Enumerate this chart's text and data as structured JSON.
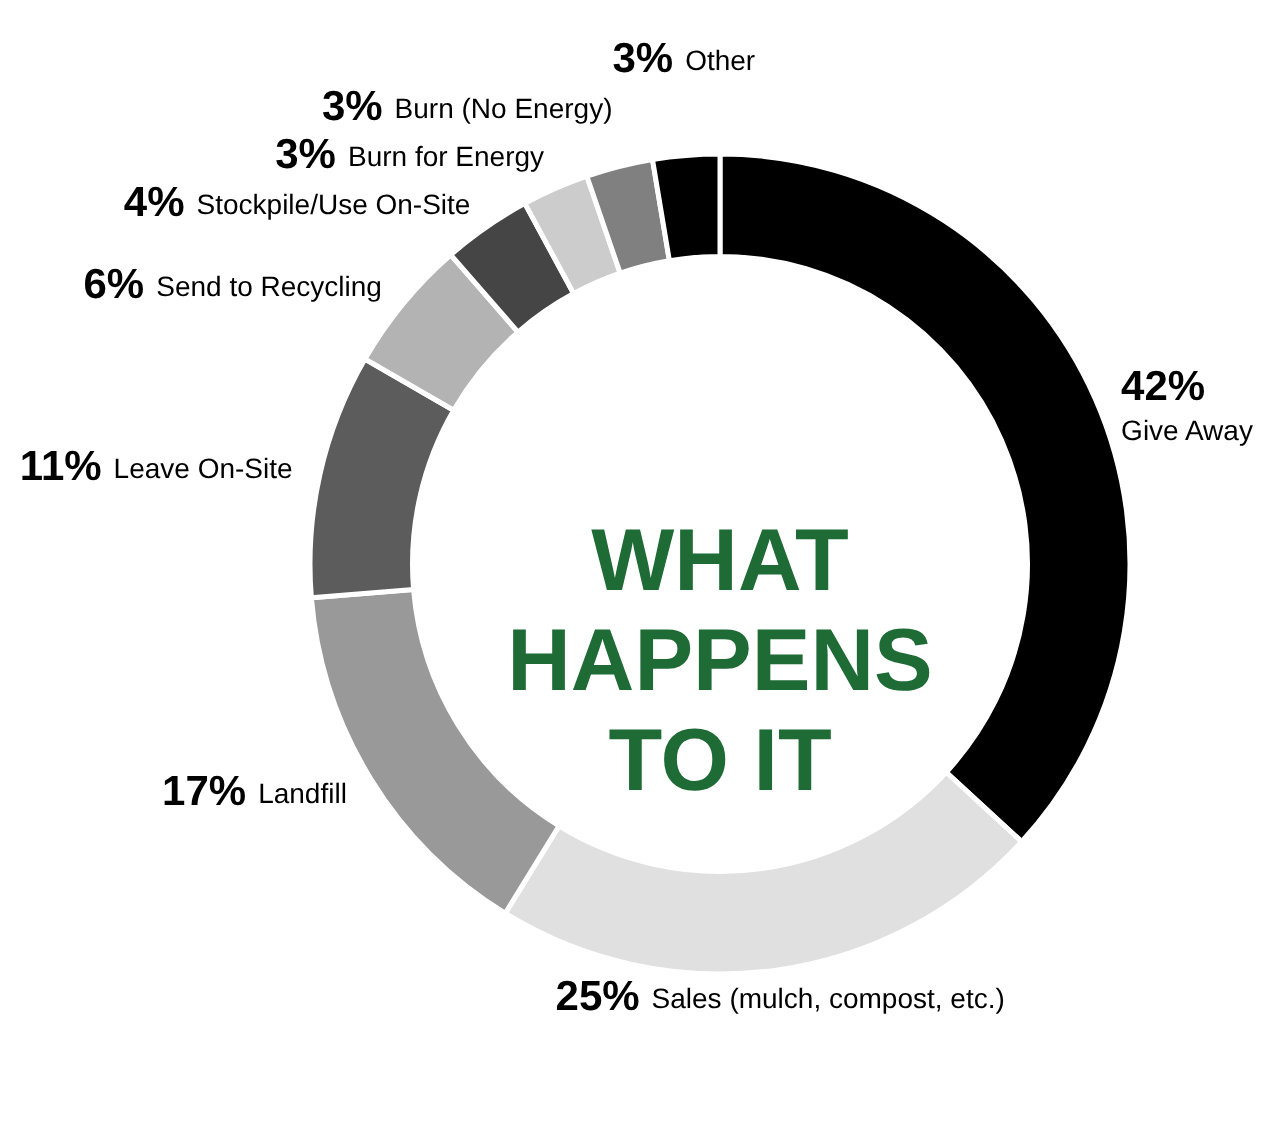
{
  "chart_data": {
    "type": "donut",
    "title": "WHAT HAPPENS TO IT",
    "categories": [
      "Give Away",
      "Sales (mulch, compost, etc.)",
      "Landfill",
      "Leave On-Site",
      "Send to Recycling",
      "Stockpile/Use On-Site",
      "Burn for Energy",
      "Burn (No Energy)",
      "Other"
    ],
    "values": [
      42,
      25,
      17,
      11,
      6,
      4,
      3,
      3,
      3
    ],
    "value_labels": [
      "42%",
      "25%",
      "17%",
      "11%",
      "6%",
      "4%",
      "3%",
      "3%",
      "3%"
    ],
    "colors": [
      "#000000",
      "#e0e0e0",
      "#999999",
      "#5c5c5c",
      "#b3b3b3",
      "#454545",
      "#cccccc",
      "#808080",
      "#000000"
    ]
  }
}
